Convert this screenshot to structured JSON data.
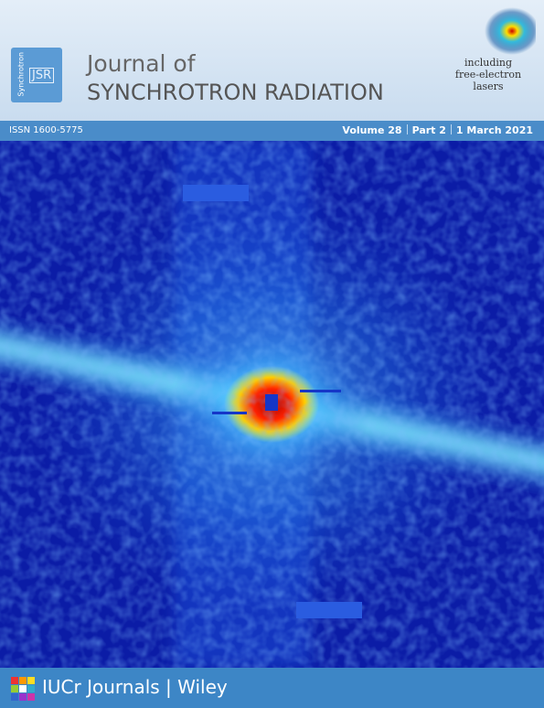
{
  "logo": {
    "side_text": "Synchrotron",
    "initials": "JSR"
  },
  "header": {
    "title_line1": "Journal of",
    "title_line2": "SYNCHROTRON RADIATION",
    "tagline": [
      "including",
      "free-electron",
      "lasers"
    ]
  },
  "info_bar": {
    "issn": "ISSN 1600-5775",
    "volume": "Volume 28",
    "part": "Part 2",
    "date": "1 March 2021"
  },
  "footer": {
    "publisher": "IUCr Journals | Wiley"
  }
}
